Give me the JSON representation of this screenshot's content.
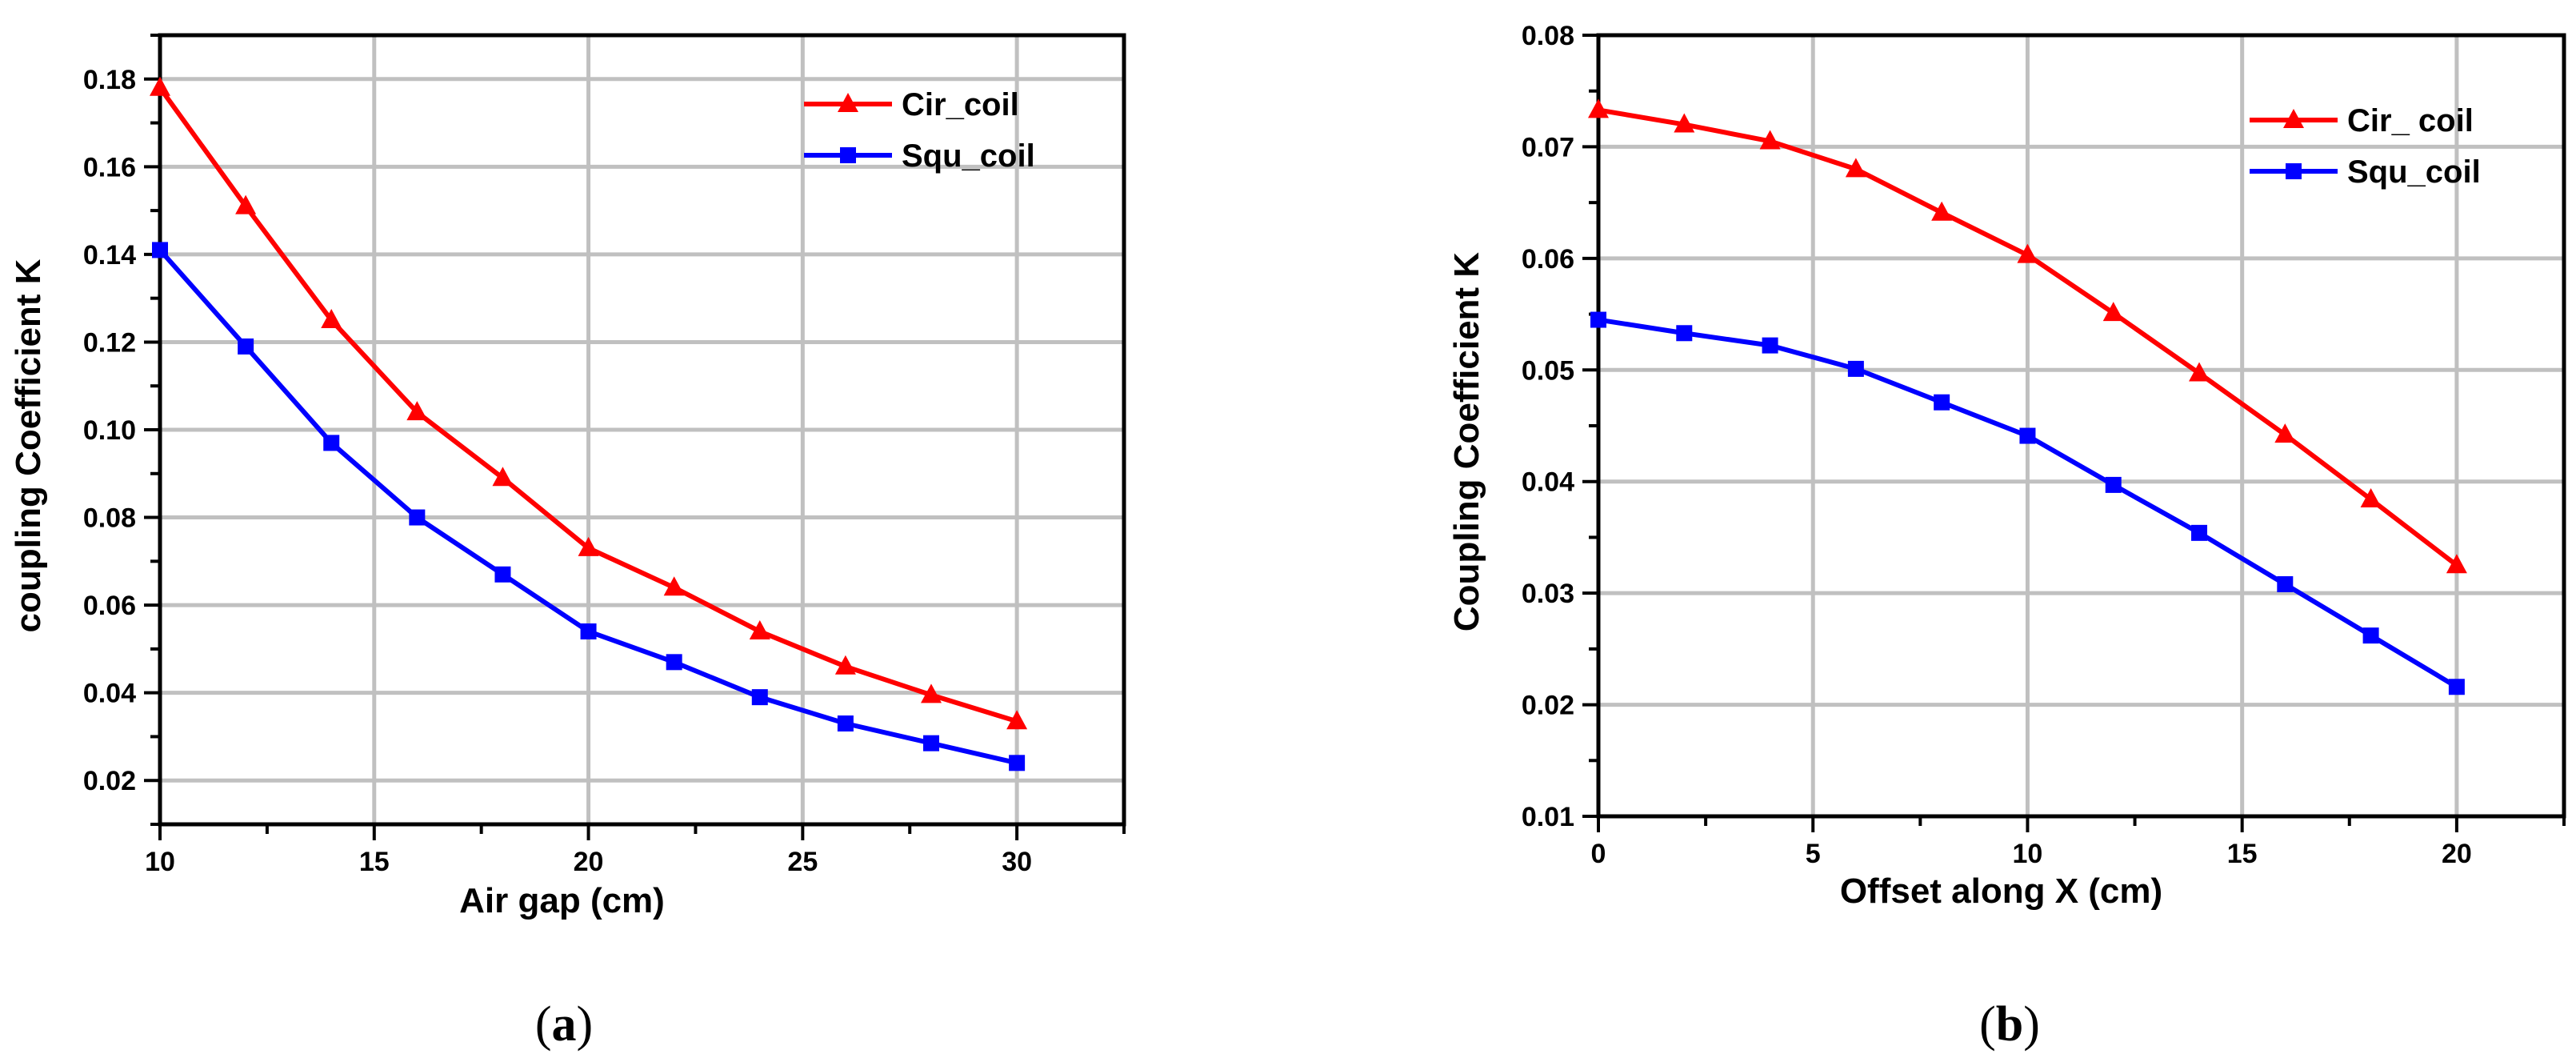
{
  "chart_data": [
    {
      "type": "line",
      "panel_id": "a",
      "caption": "(a)",
      "caption_open": "(",
      "caption_letter": "a",
      "caption_close": ")",
      "title": "",
      "xlabel": "Air gap (cm)",
      "ylabel": "coupling Coefficient K",
      "xlim": [
        10,
        32.5
      ],
      "ylim": [
        0.01,
        0.19
      ],
      "xticks": [
        10,
        15,
        20,
        25,
        30
      ],
      "xtick_labels": [
        "10",
        "15",
        "20",
        "25",
        "30"
      ],
      "yticks": [
        0.02,
        0.04,
        0.06,
        0.08,
        0.1,
        0.12,
        0.14,
        0.16,
        0.18
      ],
      "ytick_labels": [
        "0.02",
        "0.04",
        "0.06",
        "0.08",
        "0.10",
        "0.12",
        "0.14",
        "0.16",
        "0.18"
      ],
      "grid": true,
      "legend_position": "top-right",
      "series": [
        {
          "name": "Cir_coil",
          "color": "#ff0000",
          "marker": "triangle",
          "x": [
            10,
            12,
            14,
            16,
            18,
            20,
            22,
            24,
            26,
            28,
            30
          ],
          "values": [
            0.178,
            0.151,
            0.125,
            0.104,
            0.089,
            0.073,
            0.064,
            0.054,
            0.046,
            0.0395,
            0.0335
          ]
        },
        {
          "name": "Squ_coil",
          "color": "#0000ff",
          "marker": "square",
          "x": [
            10,
            12,
            14,
            16,
            18,
            20,
            22,
            24,
            26,
            28,
            30
          ],
          "values": [
            0.141,
            0.119,
            0.097,
            0.08,
            0.067,
            0.054,
            0.047,
            0.039,
            0.033,
            0.0285,
            0.024
          ]
        }
      ]
    },
    {
      "type": "line",
      "panel_id": "b",
      "caption": "(b)",
      "caption_open": "(",
      "caption_letter": "b",
      "caption_close": ")",
      "title": "",
      "xlabel": "Offset along X (cm)",
      "ylabel": "Coupling Coefficient K",
      "xlim": [
        0,
        22.5
      ],
      "ylim": [
        0.01,
        0.08
      ],
      "xticks": [
        0,
        5,
        10,
        15,
        20
      ],
      "xtick_labels": [
        "0",
        "5",
        "10",
        "15",
        "20"
      ],
      "yticks": [
        0.01,
        0.02,
        0.03,
        0.04,
        0.05,
        0.06,
        0.07,
        0.08
      ],
      "ytick_labels": [
        "0.01",
        "0.02",
        "0.03",
        "0.04",
        "0.05",
        "0.06",
        "0.07",
        "0.08"
      ],
      "grid": true,
      "legend_position": "top-right",
      "series": [
        {
          "name": "Cir_ coil",
          "color": "#ff0000",
          "marker": "triangle",
          "x": [
            0,
            2,
            4,
            6,
            8,
            10,
            12,
            14,
            16,
            18,
            20
          ],
          "values": [
            0.0733,
            0.072,
            0.0705,
            0.068,
            0.0641,
            0.0603,
            0.0551,
            0.0497,
            0.0442,
            0.0384,
            0.0325
          ]
        },
        {
          "name": "Squ_coil",
          "color": "#0000ff",
          "marker": "square",
          "x": [
            0,
            2,
            4,
            6,
            8,
            10,
            12,
            14,
            16,
            18,
            20
          ],
          "values": [
            0.0545,
            0.0533,
            0.0522,
            0.0501,
            0.0471,
            0.0441,
            0.0397,
            0.0354,
            0.0308,
            0.0262,
            0.0216
          ]
        }
      ]
    }
  ]
}
